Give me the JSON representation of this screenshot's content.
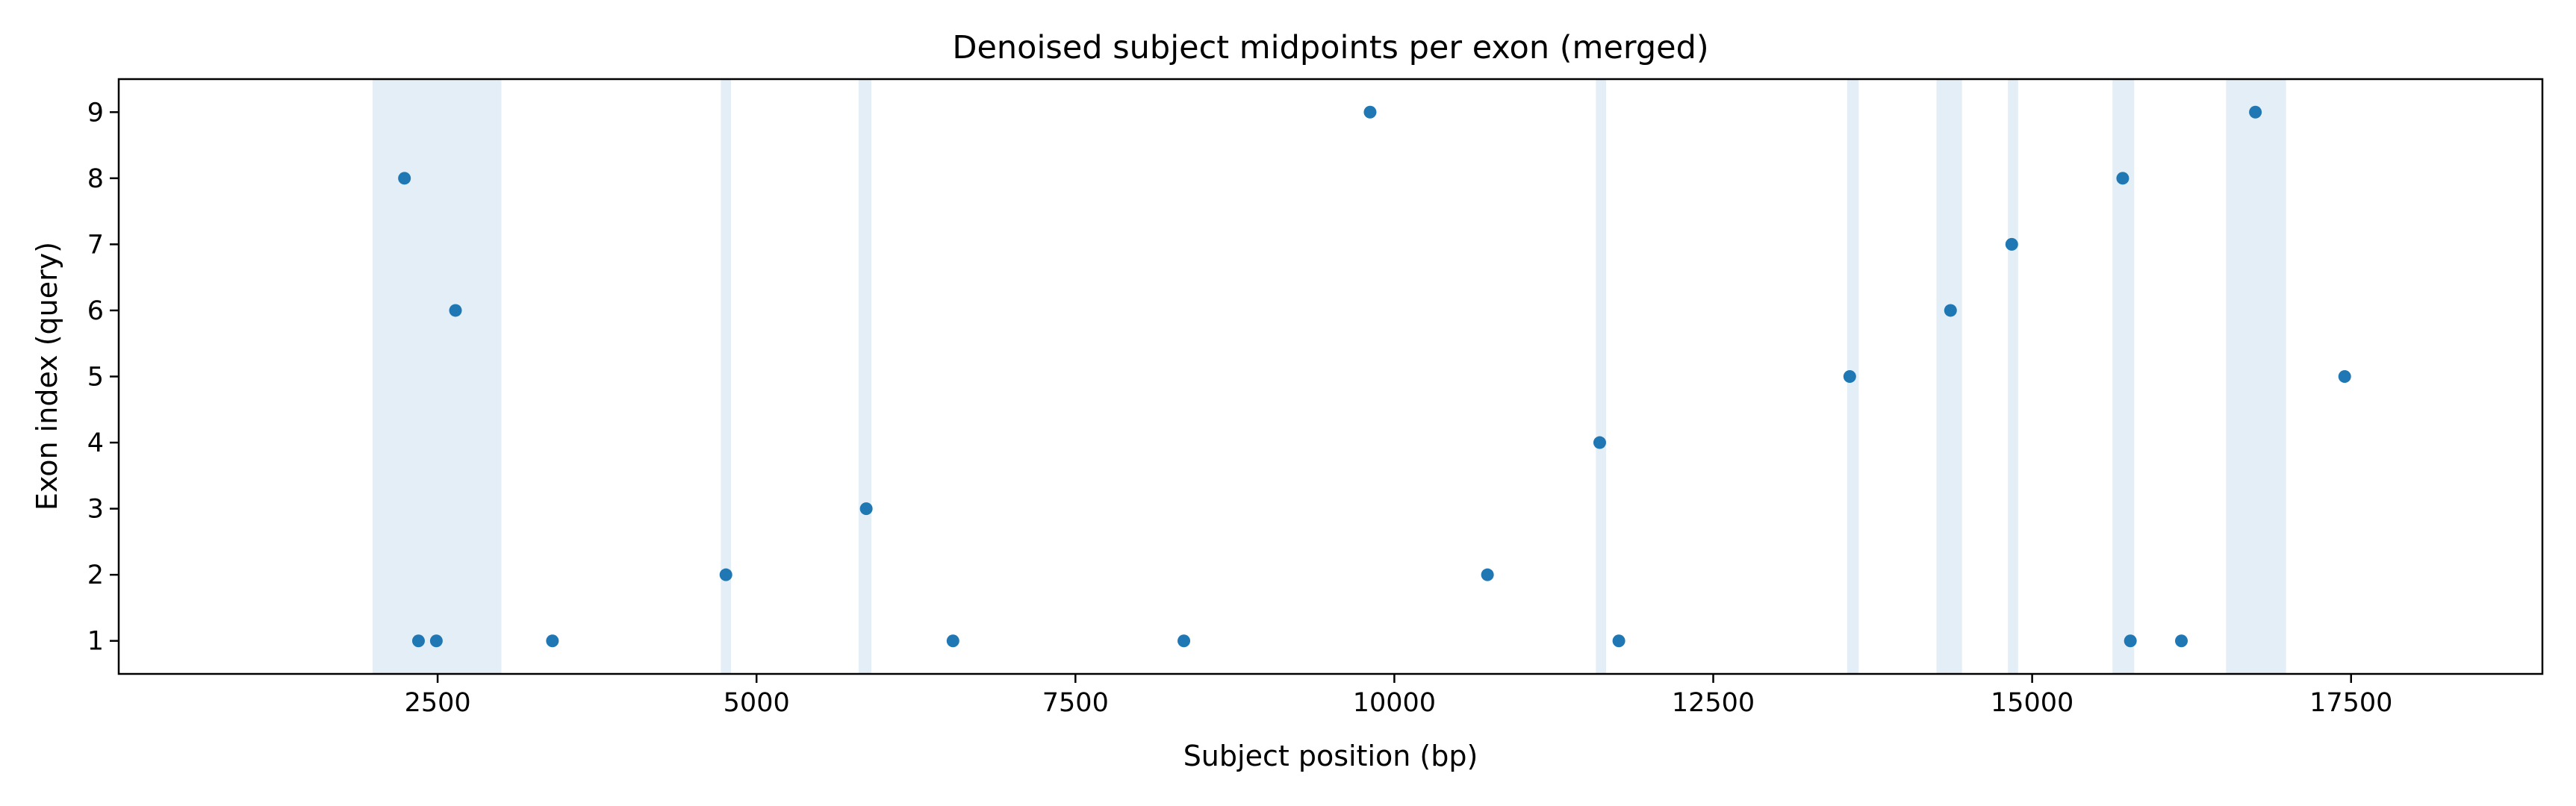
{
  "chart_data": {
    "type": "scatter",
    "title": "Denoised subject midpoints per exon (merged)",
    "xlabel": "Subject position (bp)",
    "ylabel": "Exon index (query)",
    "xlim": [
      0,
      19000
    ],
    "ylim": [
      0.5,
      9.5
    ],
    "xticks": [
      2500,
      5000,
      7500,
      10000,
      12500,
      15000,
      17500
    ],
    "yticks": [
      1,
      2,
      3,
      4,
      5,
      6,
      7,
      8,
      9
    ],
    "grid": false,
    "point_color": "#1f77b4",
    "band_color": "#e3eef6",
    "highlight_bands": [
      [
        1990,
        3000
      ],
      [
        4720,
        4800
      ],
      [
        5800,
        5900
      ],
      [
        11580,
        11660
      ],
      [
        13550,
        13640
      ],
      [
        14250,
        14450
      ],
      [
        14810,
        14890
      ],
      [
        15630,
        15800
      ],
      [
        16520,
        16990
      ]
    ],
    "points": [
      {
        "x": 2240,
        "y": 8
      },
      {
        "x": 2350,
        "y": 1
      },
      {
        "x": 2490,
        "y": 1
      },
      {
        "x": 2640,
        "y": 6
      },
      {
        "x": 3400,
        "y": 1
      },
      {
        "x": 4760,
        "y": 2
      },
      {
        "x": 5860,
        "y": 3
      },
      {
        "x": 6540,
        "y": 1
      },
      {
        "x": 8350,
        "y": 1
      },
      {
        "x": 9810,
        "y": 9
      },
      {
        "x": 10730,
        "y": 2
      },
      {
        "x": 11610,
        "y": 4
      },
      {
        "x": 11760,
        "y": 1
      },
      {
        "x": 13570,
        "y": 5
      },
      {
        "x": 14360,
        "y": 6
      },
      {
        "x": 14840,
        "y": 7
      },
      {
        "x": 15710,
        "y": 8
      },
      {
        "x": 15770,
        "y": 1
      },
      {
        "x": 16170,
        "y": 1
      },
      {
        "x": 16750,
        "y": 9
      },
      {
        "x": 17450,
        "y": 5
      }
    ]
  }
}
